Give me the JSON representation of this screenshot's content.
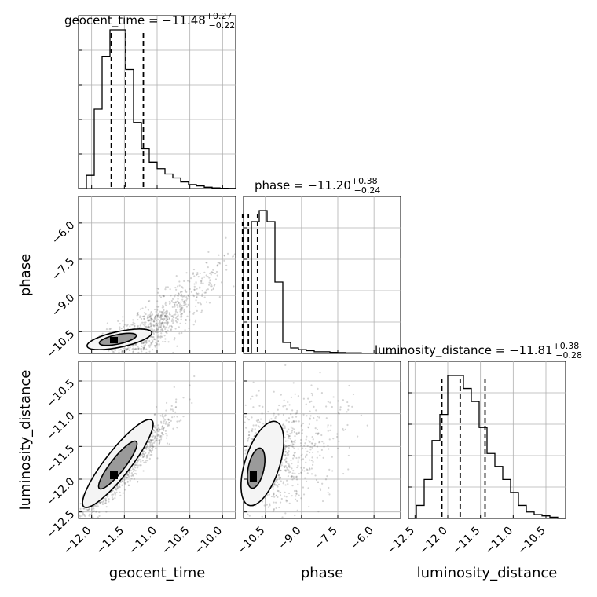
{
  "chart_data": {
    "type": "corner",
    "parameters": [
      "geocent_time",
      "phase",
      "luminosity_distance"
    ],
    "grid": true,
    "diagonal": [
      {
        "name": "geocent_time",
        "title": {
          "label": "geocent_time",
          "median": "−11.48",
          "plus": "+0.27",
          "minus": "−0.22"
        },
        "range": [
          -12.2,
          -9.8
        ],
        "hist_counts": [
          0,
          1,
          6,
          10,
          12,
          12,
          9,
          5,
          3,
          2,
          1.5,
          1.1,
          0.8,
          0.5,
          0.3,
          0.2,
          0.1,
          0.05,
          0.02,
          0.01
        ],
        "quantiles": [
          -11.7,
          -11.48,
          -11.21
        ]
      },
      {
        "name": "phase",
        "title": {
          "label": "phase",
          "median": "−11.20",
          "plus": "+0.38",
          "minus": "−0.24"
        },
        "range": [
          -11.4,
          -4.9
        ],
        "hist_counts": [
          0,
          24,
          26,
          24,
          13,
          2,
          1,
          0.7,
          0.5,
          0.3,
          0.3,
          0.2,
          0.15,
          0.1,
          0.1,
          0.05,
          0.05,
          0.02,
          0.01,
          0.0
        ],
        "quantiles": [
          -11.44,
          -11.2,
          -10.82
        ]
      },
      {
        "name": "luminosity_distance",
        "title": {
          "label": "luminosity_distance",
          "median": "−11.81",
          "plus": "+0.38",
          "minus": "−0.28"
        },
        "range": [
          -12.6,
          -10.2
        ],
        "hist_counts": [
          0,
          1,
          3,
          6,
          8,
          11,
          11,
          10,
          9,
          7,
          5,
          4,
          3,
          2,
          1,
          0.5,
          0.3,
          0.2,
          0.1,
          0.0
        ],
        "quantiles": [
          -12.09,
          -11.81,
          -11.43
        ]
      }
    ],
    "offdiagonal": [
      {
        "x": "geocent_time",
        "y": "phase",
        "center": [
          -11.6,
          -11.2
        ],
        "trend": "positive, curved"
      },
      {
        "x": "geocent_time",
        "y": "luminosity_distance",
        "center": [
          -11.6,
          -11.9
        ],
        "trend": "positive, linear"
      },
      {
        "x": "phase",
        "y": "luminosity_distance",
        "center": [
          -11.2,
          -11.9
        ],
        "trend": "weak positive"
      }
    ],
    "ticks": {
      "geocent_time_x": [
        "−12.0",
        "−11.5",
        "−11.0",
        "−10.5",
        "−10.0"
      ],
      "phase_y": [
        "−6.0",
        "−7.5",
        "−9.0",
        "−10.5"
      ],
      "lumdist_y": [
        "−10.5",
        "−11.0",
        "−11.5",
        "−12.0",
        "−12.5"
      ],
      "phase_x": [
        "−10.5",
        "−9.0",
        "−7.5",
        "−6.0"
      ],
      "lumdist_x": [
        "−12.5",
        "−12.0",
        "−11.5",
        "−11.0",
        "−10.5"
      ]
    },
    "axis_labels": {
      "geocent_time": "geocent_time",
      "phase": "phase",
      "luminosity_distance": "luminosity_distance"
    }
  }
}
